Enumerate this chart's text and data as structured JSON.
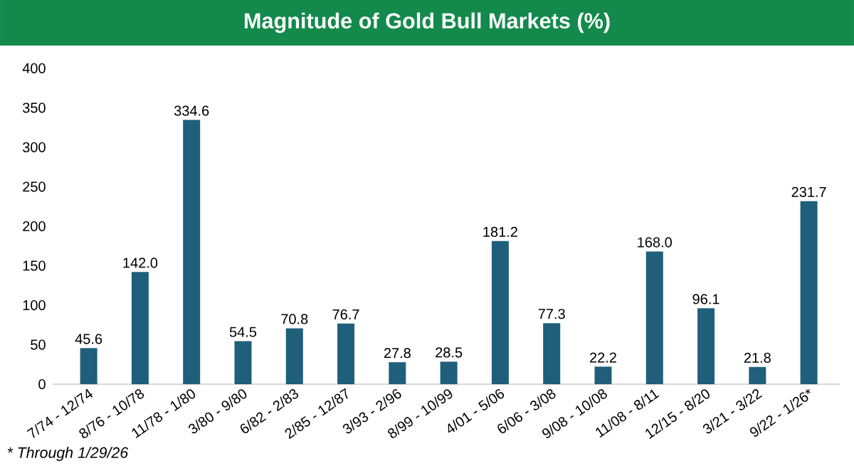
{
  "chart_data": {
    "type": "bar",
    "title": "Magnitude of Gold Bull Markets (%)",
    "categories": [
      "7/74 - 12/74",
      "8/76 - 10/78",
      "11/78 - 1/80",
      "3/80 - 9/80",
      "6/82 - 2/83",
      "2/85 - 12/87",
      "3/93 - 2/96",
      "8/99 - 10/99",
      "4/01 - 5/06",
      "6/06 - 3/08",
      "9/08 - 10/08",
      "11/08 - 8/11",
      "12/15 - 8/20",
      "3/21 - 3/22",
      "9/22 - 1/26*"
    ],
    "values": [
      45.6,
      142.0,
      334.6,
      54.5,
      70.8,
      76.7,
      27.8,
      28.5,
      181.2,
      77.3,
      22.2,
      168.0,
      96.1,
      21.8,
      231.7
    ],
    "value_labels": [
      "45.6",
      "142.0",
      "334.6",
      "54.5",
      "70.8",
      "76.7",
      "27.8",
      "28.5",
      "181.2",
      "77.3",
      "22.2",
      "168.0",
      "96.1",
      "21.8",
      "231.7"
    ],
    "color": "#1f5f7c",
    "ylim": [
      0,
      400
    ],
    "yticks": [
      0,
      50,
      100,
      150,
      200,
      250,
      300,
      350,
      400
    ],
    "annotations": [
      "* Through 1/29/26"
    ]
  }
}
